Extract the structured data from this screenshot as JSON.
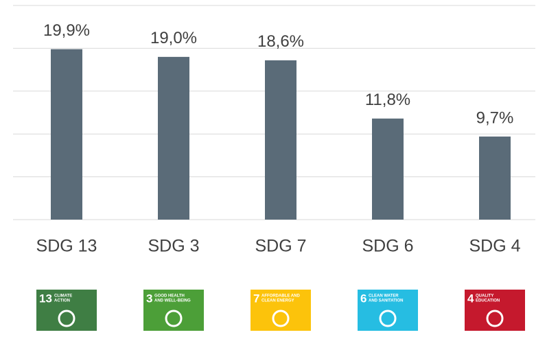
{
  "chart_data": {
    "type": "bar",
    "categories": [
      "SDG 13",
      "SDG 3",
      "SDG 7",
      "SDG 6",
      "SDG 4"
    ],
    "values": [
      19.9,
      19.0,
      18.6,
      11.8,
      9.7
    ],
    "value_labels": [
      "19,9%",
      "19,0%",
      "18,6%",
      "11,8%",
      "9,7%"
    ],
    "color": "#5a6b78",
    "ylim": [
      0,
      25
    ],
    "yticks": [
      0,
      5,
      10,
      15,
      20,
      25
    ],
    "grid": true,
    "icons": [
      {
        "number": "13",
        "lines": [
          "CLIMATE",
          "ACTION"
        ],
        "color": "#3f7e44"
      },
      {
        "number": "3",
        "lines": [
          "GOOD HEALTH",
          "AND WELL-BEING"
        ],
        "color": "#4c9f38"
      },
      {
        "number": "7",
        "lines": [
          "AFFORDABLE AND",
          "CLEAN ENERGY"
        ],
        "color": "#fcc30b"
      },
      {
        "number": "6",
        "lines": [
          "CLEAN WATER",
          "AND SANITATION"
        ],
        "color": "#26bde2"
      },
      {
        "number": "4",
        "lines": [
          "QUALITY",
          "EDUCATION"
        ],
        "color": "#c5192d"
      }
    ]
  }
}
